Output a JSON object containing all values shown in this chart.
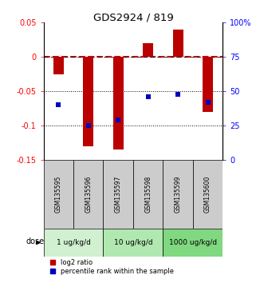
{
  "title": "GDS2924 / 819",
  "samples": [
    "GSM135595",
    "GSM135596",
    "GSM135597",
    "GSM135598",
    "GSM135599",
    "GSM135600"
  ],
  "log2_ratios": [
    -0.025,
    -0.13,
    -0.135,
    0.02,
    0.04,
    -0.08
  ],
  "percentile_ranks": [
    40,
    25,
    29,
    46,
    48,
    42
  ],
  "left_ylim": [
    -0.15,
    0.05
  ],
  "right_ylim": [
    0,
    100
  ],
  "left_yticks": [
    0.05,
    0.0,
    -0.05,
    -0.1,
    -0.15
  ],
  "left_yticklabels": [
    "0.05",
    "0",
    "-0.05",
    "-0.1",
    "-0.15"
  ],
  "right_yticks": [
    100,
    75,
    50,
    25,
    0
  ],
  "right_yticklabels": [
    "100%",
    "75",
    "50",
    "25",
    "0"
  ],
  "dose_groups": [
    {
      "label": "1 ug/kg/d",
      "indices": [
        0,
        1
      ],
      "color": "#d0f0d0"
    },
    {
      "label": "10 ug/kg/d",
      "indices": [
        2,
        3
      ],
      "color": "#b0e8b0"
    },
    {
      "label": "1000 ug/kg/d",
      "indices": [
        4,
        5
      ],
      "color": "#80d880"
    }
  ],
  "bar_color": "#bb0000",
  "dot_color": "#0000bb",
  "bar_width": 0.35,
  "dot_size": 25,
  "zero_line_color": "#cc0000",
  "sample_box_color": "#cccccc",
  "legend_red_label": "log2 ratio",
  "legend_blue_label": "percentile rank within the sample"
}
